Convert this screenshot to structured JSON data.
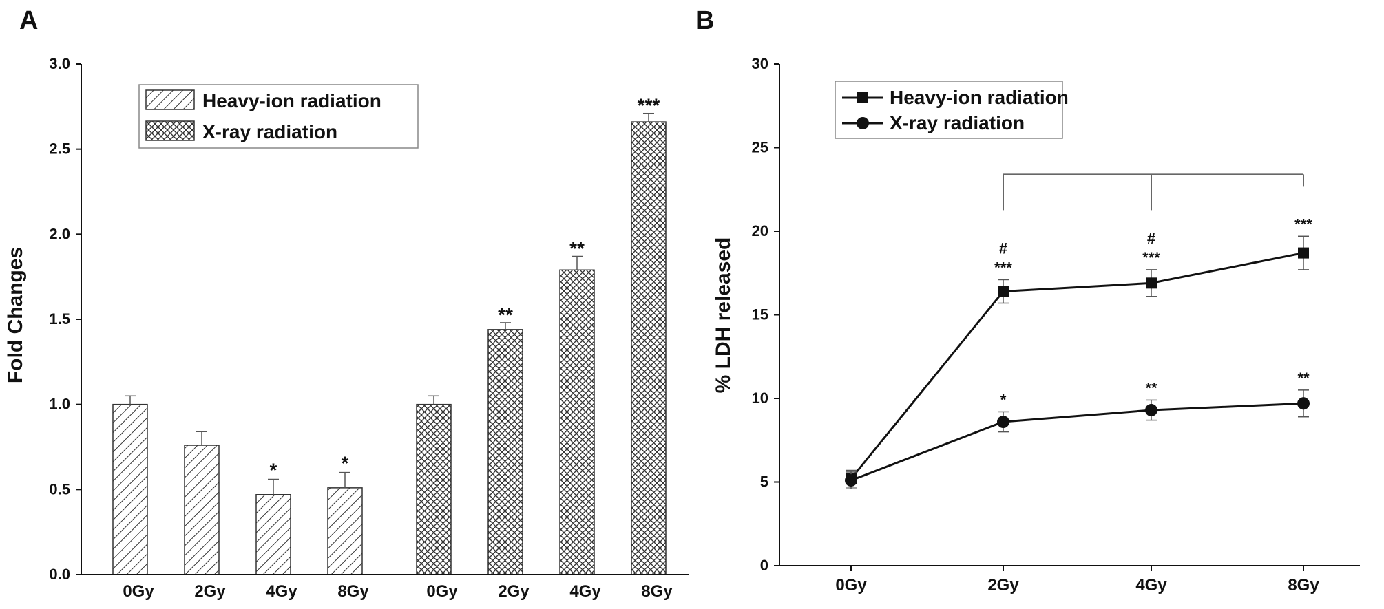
{
  "panels": {
    "a": "A",
    "b": "B"
  },
  "chart_data": [
    {
      "type": "bar",
      "ylabel": "Fold Changes",
      "xlabel": "",
      "ylim": [
        0,
        3.0
      ],
      "yticks": [
        "0.0",
        "0.5",
        "1.0",
        "1.5",
        "2.0",
        "2.5",
        "3.0"
      ],
      "categories": [
        "0Gy",
        "2Gy",
        "4Gy",
        "8Gy"
      ],
      "legend_position": "top-left",
      "series": [
        {
          "name": "Heavy-ion radiation",
          "pattern": "diagonal-hatch",
          "values": [
            1.0,
            0.76,
            0.47,
            0.51
          ],
          "errors": [
            0.05,
            0.08,
            0.09,
            0.09
          ],
          "annotations": [
            "",
            "",
            "*",
            "*"
          ]
        },
        {
          "name": "X-ray radiation",
          "pattern": "crosshatch",
          "values": [
            1.0,
            1.44,
            1.79,
            2.66
          ],
          "errors": [
            0.05,
            0.04,
            0.08,
            0.05
          ],
          "annotations": [
            "",
            "**",
            "**",
            "***"
          ]
        }
      ]
    },
    {
      "type": "line",
      "ylabel": "% LDH released",
      "xlabel": "",
      "ylim": [
        0,
        30
      ],
      "yticks": [
        "0",
        "5",
        "10",
        "15",
        "20",
        "25",
        "30"
      ],
      "x": [
        "0Gy",
        "2Gy",
        "4Gy",
        "8Gy"
      ],
      "legend_position": "top-left",
      "series": [
        {
          "name": "Heavy-ion radiation",
          "marker": "square",
          "values": [
            5.2,
            16.4,
            16.9,
            18.7
          ],
          "errors": [
            0.5,
            0.7,
            0.8,
            1.0
          ],
          "annotations": [
            "",
            "***",
            "***",
            "***"
          ],
          "hash": [
            "",
            "#",
            "#",
            ""
          ]
        },
        {
          "name": "X-ray radiation",
          "marker": "circle",
          "values": [
            5.1,
            8.6,
            9.3,
            9.7
          ],
          "errors": [
            0.5,
            0.6,
            0.6,
            0.8
          ],
          "annotations": [
            "",
            "*",
            "**",
            "**"
          ]
        }
      ],
      "bracket": {
        "from": "2Gy",
        "to": "8Gy",
        "mid": "4Gy",
        "y": 23.4
      }
    }
  ]
}
